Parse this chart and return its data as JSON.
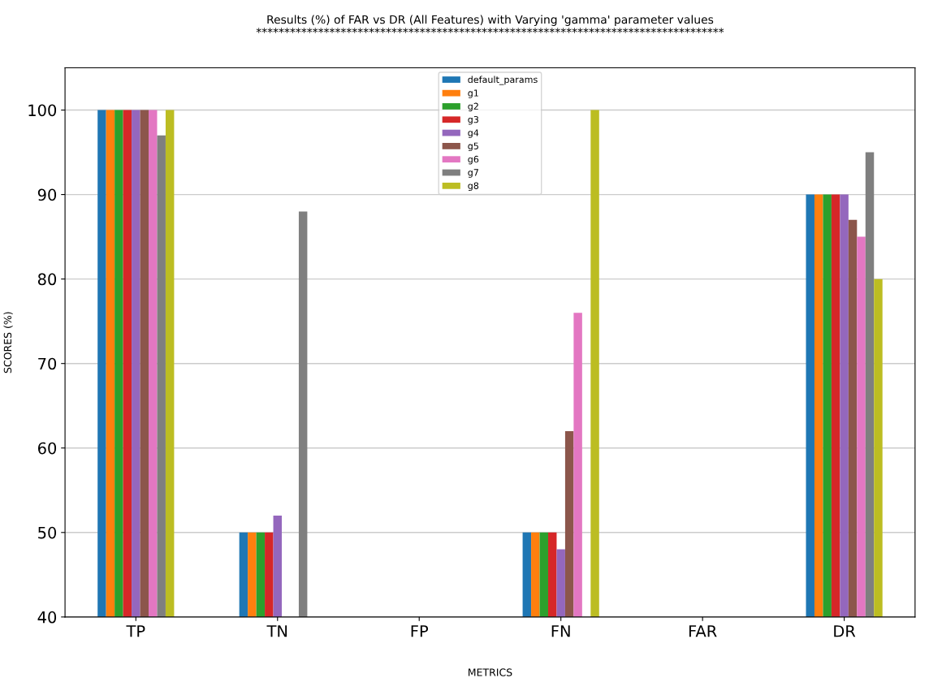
{
  "chart_data": {
    "type": "bar",
    "title": "Results (%) of FAR vs DR (All Features) with Varying 'gamma' parameter values\n***********************************************************************************",
    "xlabel": "METRICS",
    "ylabel": "SCORES (%)",
    "categories": [
      "TP",
      "TN",
      "FP",
      "FN",
      "FAR",
      "DR"
    ],
    "series": [
      {
        "name": "default_params",
        "color": "#1f77b4",
        "values": [
          100,
          50,
          null,
          50,
          null,
          90
        ]
      },
      {
        "name": "g1",
        "color": "#ff7f0e",
        "values": [
          100,
          50,
          null,
          50,
          null,
          90
        ]
      },
      {
        "name": "g2",
        "color": "#2ca02c",
        "values": [
          100,
          50,
          null,
          50,
          null,
          90
        ]
      },
      {
        "name": "g3",
        "color": "#d62728",
        "values": [
          100,
          50,
          null,
          50,
          null,
          90
        ]
      },
      {
        "name": "g4",
        "color": "#9467bd",
        "values": [
          100,
          52,
          null,
          48,
          null,
          90
        ]
      },
      {
        "name": "g5",
        "color": "#8c564b",
        "values": [
          100,
          null,
          null,
          62,
          null,
          87
        ]
      },
      {
        "name": "g6",
        "color": "#e377c2",
        "values": [
          100,
          null,
          null,
          76,
          null,
          85
        ]
      },
      {
        "name": "g7",
        "color": "#7f7f7f",
        "values": [
          97,
          88,
          null,
          null,
          null,
          95
        ]
      },
      {
        "name": "g8",
        "color": "#bcbd22",
        "values": [
          100,
          null,
          null,
          100,
          null,
          80
        ]
      }
    ],
    "ylim": [
      40,
      105
    ],
    "yticks": [
      40,
      50,
      60,
      70,
      80,
      90,
      100
    ],
    "grid": "y",
    "legend": "top"
  }
}
